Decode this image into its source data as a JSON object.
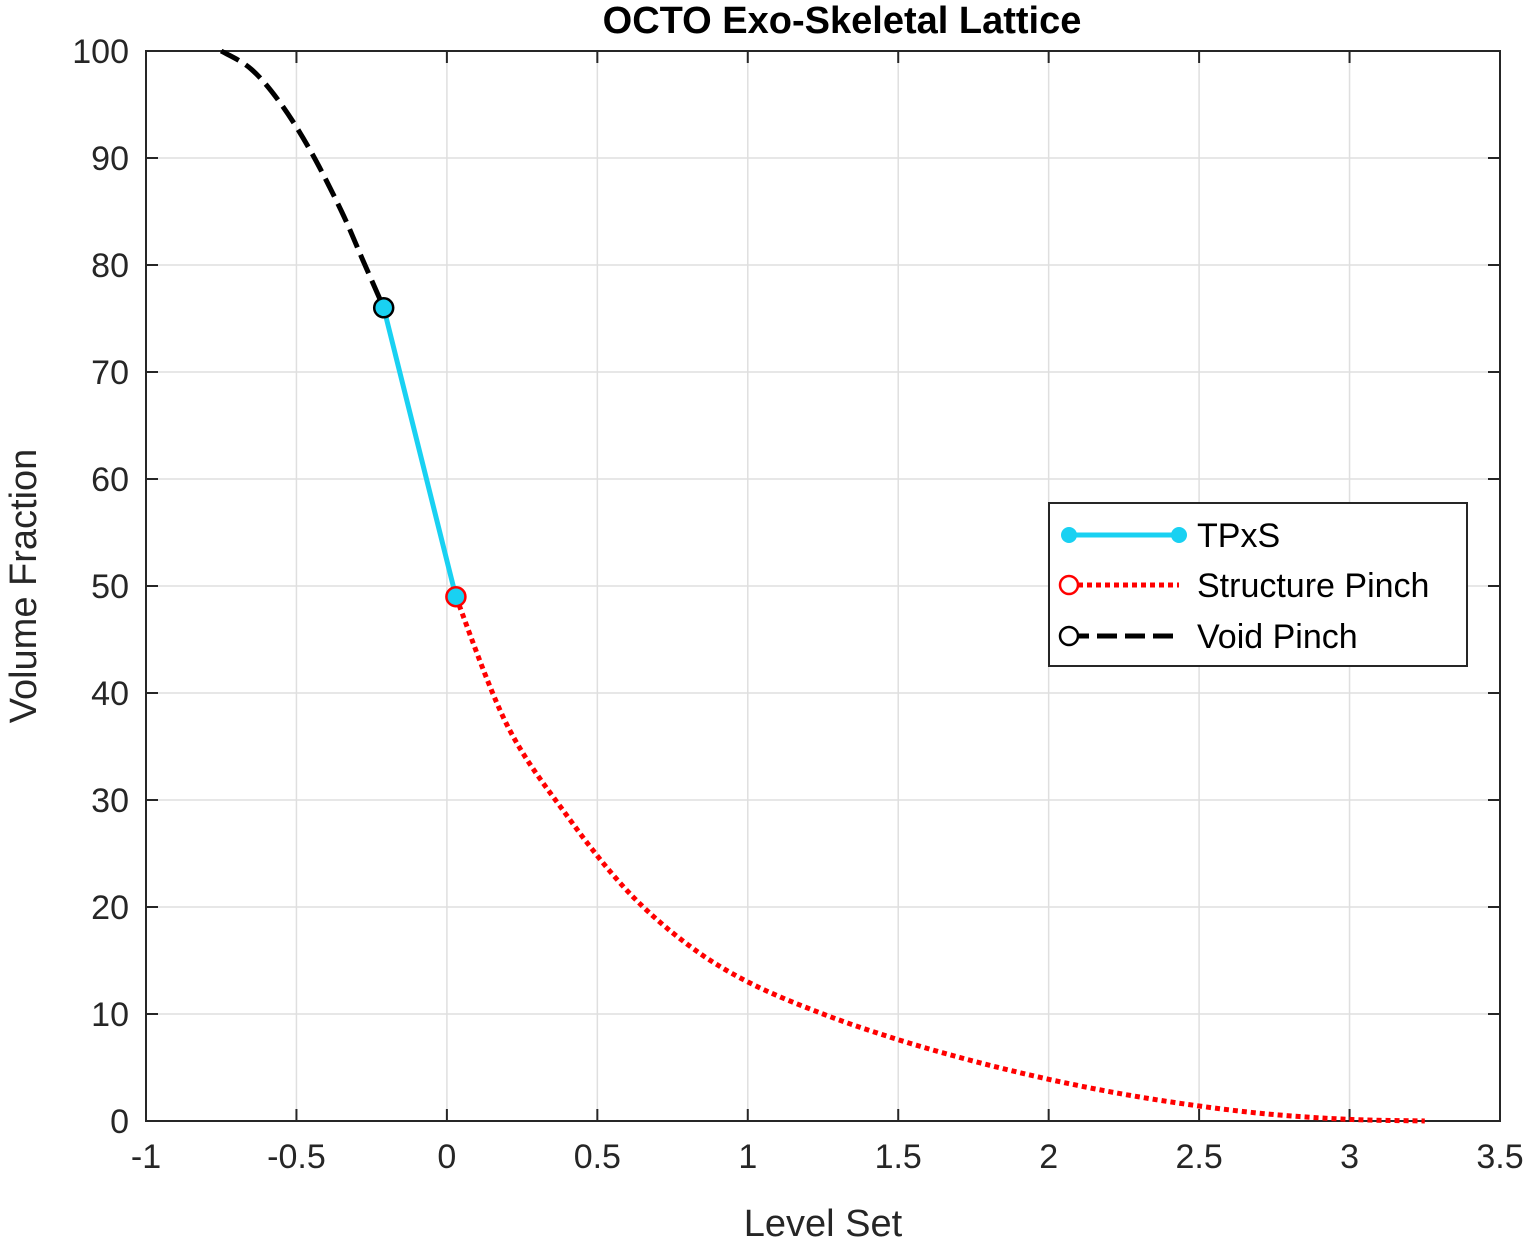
{
  "chart_data": {
    "type": "line",
    "title": "OCTO Exo-Skeletal Lattice",
    "xlabel": "Level Set",
    "ylabel": "Volume Fraction",
    "xlim": [
      -1,
      3.5
    ],
    "ylim": [
      0,
      100
    ],
    "xticks": [
      -1,
      -0.5,
      0,
      0.5,
      1,
      1.5,
      2,
      2.5,
      3,
      3.5
    ],
    "xtick_labels": [
      "-1",
      "-0.5",
      "0",
      "0.5",
      "1",
      "1.5",
      "2",
      "2.5",
      "3",
      "3.5"
    ],
    "yticks": [
      0,
      10,
      20,
      30,
      40,
      50,
      60,
      70,
      80,
      90,
      100
    ],
    "ytick_labels": [
      "0",
      "10",
      "20",
      "30",
      "40",
      "50",
      "60",
      "70",
      "80",
      "90",
      "100"
    ],
    "grid": true,
    "legend_position": "right",
    "series": [
      {
        "name": "TPxS",
        "color": "#19d1f2",
        "style": "solid-with-markers",
        "x": [
          -0.21,
          0.03
        ],
        "y": [
          76,
          49
        ]
      },
      {
        "name": "Structure Pinch",
        "color": "#ff0000",
        "style": "dotted",
        "marker": "open-circle",
        "x": [
          0.03,
          0.2,
          0.4,
          0.6,
          0.8,
          1.0,
          1.25,
          1.5,
          1.75,
          2.0,
          2.25,
          2.5,
          2.75,
          3.0,
          3.25
        ],
        "y": [
          49,
          37,
          28.5,
          21.5,
          16.5,
          13,
          10,
          7.6,
          5.6,
          3.9,
          2.5,
          1.4,
          0.6,
          0.15,
          0
        ]
      },
      {
        "name": "Void Pinch",
        "color": "#000000",
        "style": "dashed",
        "marker": "open-circle",
        "x": [
          -0.75,
          -0.65,
          -0.55,
          -0.45,
          -0.35,
          -0.28,
          -0.21
        ],
        "y": [
          100,
          98.3,
          95,
          90.5,
          85,
          80.5,
          76
        ]
      }
    ]
  }
}
